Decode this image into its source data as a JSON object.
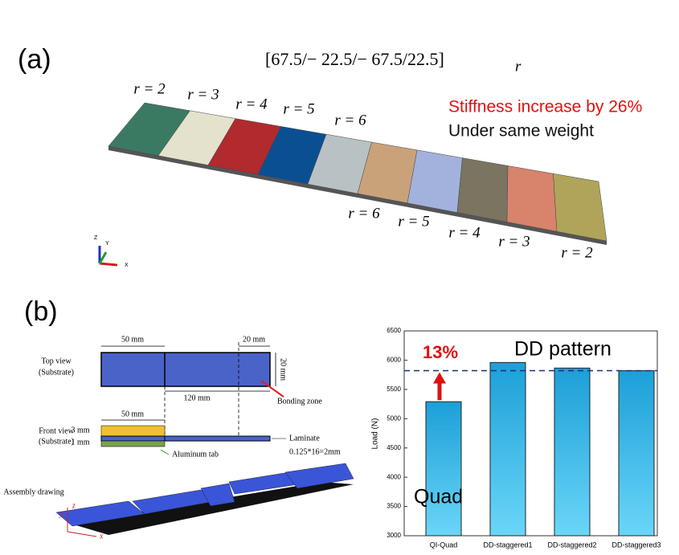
{
  "panel_a": {
    "label": "(a)",
    "formula": "[67.5/− 22.5/− 67.5/22.5]",
    "formula_subscript": "r",
    "top_labels": [
      "r = 2",
      "r = 3",
      "r = 4",
      "r = 5",
      "r = 6"
    ],
    "bottom_labels": [
      "r = 6",
      "r = 5",
      "r = 4",
      "r = 3",
      "r = 2"
    ],
    "highlight": "Stiffness increase by 26%",
    "note": "Under same weight",
    "axes": [
      "Z",
      "Y",
      "X"
    ]
  },
  "panel_b": {
    "label": "(b)",
    "top_view": "Top view",
    "top_view_sub": "(Substrate)",
    "dim_50": "50 mm",
    "dim_20": "20 mm",
    "dim_20_vertical": "20 mm",
    "dim_120": "120 mm",
    "bonding_zone": "Bonding zone",
    "front_view": "Front view",
    "front_view_sub": "(Substrate)",
    "dim_3": "3 mm",
    "dim_1": "1 mm",
    "dim_50_front": "50 mm",
    "laminate": "Laminate",
    "laminate_thickness": "0.125*16=2mm",
    "aluminum_tab": "Aluminum tab",
    "assembly": "Assembly drawing",
    "assembly_axes": [
      "z",
      "y",
      "x"
    ]
  },
  "chart_data": {
    "type": "bar",
    "y_label": "Load (N)",
    "categories": [
      "QI-Quad",
      "DD-staggered1",
      "DD-staggered2",
      "DD-staggered3"
    ],
    "values": [
      5290,
      5960,
      5865,
      5820
    ],
    "color": "#29aee6",
    "ylim": [
      3000,
      6500
    ],
    "yticks": [
      3000,
      3500,
      4000,
      4500,
      5000,
      5500,
      6000,
      6500
    ],
    "reference_line": 5820,
    "increase_label": "13%",
    "pattern_label": "DD pattern",
    "quad_label": "Quad"
  }
}
